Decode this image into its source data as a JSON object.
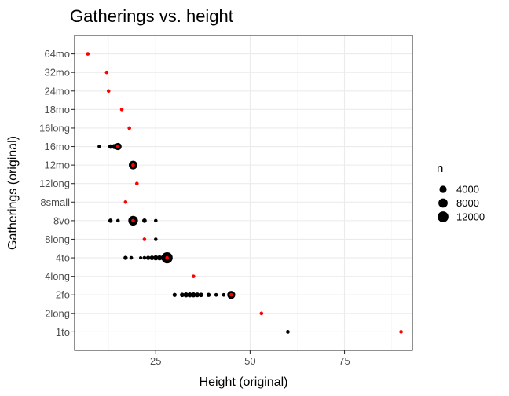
{
  "chart_data": {
    "type": "scatter",
    "title": "Gatherings vs. height",
    "xlabel": "Height (original)",
    "ylabel": "Gatherings (original)",
    "xlim": [
      3.5,
      93
    ],
    "x_ticks": [
      25,
      50,
      75
    ],
    "x_minor": [
      12.5,
      37.5,
      62.5,
      87.5
    ],
    "categories": [
      "1to",
      "2long",
      "2fo",
      "4long",
      "4to",
      "8long",
      "8vo",
      "8small",
      "12long",
      "12mo",
      "16mo",
      "16long",
      "18mo",
      "24mo",
      "32mo",
      "64mo"
    ],
    "grid": true,
    "legend": {
      "title": "n",
      "position": "right",
      "entries": [
        {
          "label": "4000",
          "n": 4000
        },
        {
          "label": "8000",
          "n": 8000
        },
        {
          "label": "12000",
          "n": 12000
        }
      ]
    },
    "size_scale": {
      "n_max": 13500
    },
    "series": [
      {
        "color": "#000000",
        "points": [
          {
            "x": 60,
            "y": "1to",
            "n": 300
          },
          {
            "x": 30,
            "y": "2fo",
            "n": 500
          },
          {
            "x": 32,
            "y": "2fo",
            "n": 800
          },
          {
            "x": 33,
            "y": "2fo",
            "n": 1200
          },
          {
            "x": 34,
            "y": "2fo",
            "n": 1200
          },
          {
            "x": 35,
            "y": "2fo",
            "n": 1200
          },
          {
            "x": 36,
            "y": "2fo",
            "n": 1000
          },
          {
            "x": 37,
            "y": "2fo",
            "n": 800
          },
          {
            "x": 39,
            "y": "2fo",
            "n": 600
          },
          {
            "x": 41,
            "y": "2fo",
            "n": 300
          },
          {
            "x": 43,
            "y": "2fo",
            "n": 300
          },
          {
            "x": 45,
            "y": "2fo",
            "n": 5500
          },
          {
            "x": 17,
            "y": "4to",
            "n": 600
          },
          {
            "x": 18.5,
            "y": "4to",
            "n": 300
          },
          {
            "x": 21,
            "y": "4to",
            "n": 150
          },
          {
            "x": 22,
            "y": "4to",
            "n": 300
          },
          {
            "x": 23,
            "y": "4to",
            "n": 600
          },
          {
            "x": 24,
            "y": "4to",
            "n": 900
          },
          {
            "x": 25,
            "y": "4to",
            "n": 1200
          },
          {
            "x": 26,
            "y": "4to",
            "n": 1200
          },
          {
            "x": 27,
            "y": "4to",
            "n": 1500
          },
          {
            "x": 28,
            "y": "4to",
            "n": 13000
          },
          {
            "x": 25,
            "y": "8long",
            "n": 250
          },
          {
            "x": 13,
            "y": "8vo",
            "n": 600
          },
          {
            "x": 15,
            "y": "8vo",
            "n": 250
          },
          {
            "x": 19,
            "y": "8vo",
            "n": 9000
          },
          {
            "x": 22,
            "y": "8vo",
            "n": 800
          },
          {
            "x": 25,
            "y": "8vo",
            "n": 250
          },
          {
            "x": 19,
            "y": "12mo",
            "n": 6500
          },
          {
            "x": 10,
            "y": "16mo",
            "n": 150
          },
          {
            "x": 13,
            "y": "16mo",
            "n": 700
          },
          {
            "x": 14,
            "y": "16mo",
            "n": 1200
          },
          {
            "x": 15,
            "y": "16mo",
            "n": 4000
          }
        ]
      },
      {
        "color": "#ff0000",
        "points": [
          {
            "x": 90,
            "y": "1to"
          },
          {
            "x": 53,
            "y": "2long"
          },
          {
            "x": 45,
            "y": "2fo"
          },
          {
            "x": 35,
            "y": "4long"
          },
          {
            "x": 28,
            "y": "4to"
          },
          {
            "x": 22,
            "y": "8long"
          },
          {
            "x": 19,
            "y": "8vo"
          },
          {
            "x": 17,
            "y": "8small"
          },
          {
            "x": 20,
            "y": "12long"
          },
          {
            "x": 19,
            "y": "12mo"
          },
          {
            "x": 15,
            "y": "16mo"
          },
          {
            "x": 18,
            "y": "16long"
          },
          {
            "x": 16,
            "y": "18mo"
          },
          {
            "x": 12.5,
            "y": "24mo"
          },
          {
            "x": 12,
            "y": "32mo"
          },
          {
            "x": 7,
            "y": "64mo"
          }
        ]
      }
    ]
  }
}
